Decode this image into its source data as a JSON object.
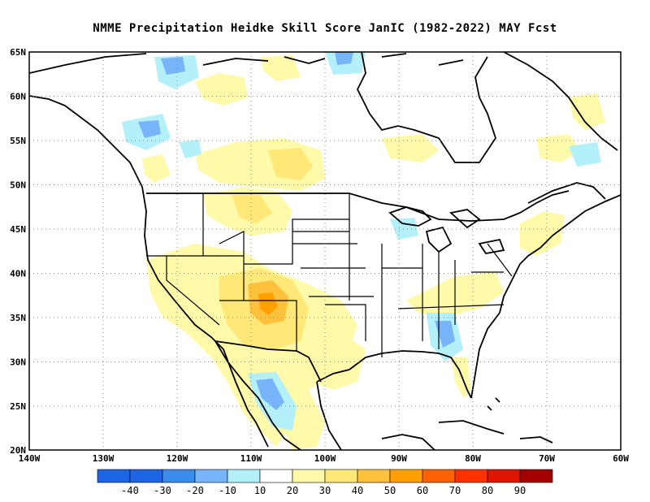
{
  "title": "NMME  Precipitation Heidke Skill Score JanIC (1982-2022) MAY Fcst",
  "lat_labels": [
    "65N",
    "60N",
    "55N",
    "50N",
    "45N",
    "40N",
    "35N",
    "30N",
    "25N",
    "20N"
  ],
  "lon_labels": [
    "140W",
    "130W",
    "120W",
    "110W",
    "100W",
    "90W",
    "80W",
    "70W",
    "60W"
  ],
  "colorbar": {
    "labels": [
      "-40",
      "-30",
      "-20",
      "-10",
      "10",
      "20",
      "30",
      "40",
      "50",
      "60",
      "70",
      "80",
      "90"
    ],
    "colors": [
      "#1e64e6",
      "#3c8cf0",
      "#78b4fa",
      "#b4f0fa",
      "#ffffff",
      "#fffaaa",
      "#ffe878",
      "#ffc03c",
      "#ffa000",
      "#ff6000",
      "#ff3200",
      "#e11400",
      "#a50000"
    ]
  },
  "colors": {
    "neg_strong": "#1e64e6",
    "neg_mid": "#78b4fa",
    "neg_weak": "#b4f0fa",
    "pos_weak": "#fffaaa",
    "pos_mid": "#ffe878",
    "pos_strong": "#ffc03c",
    "pos_peak": "#ffa000"
  }
}
